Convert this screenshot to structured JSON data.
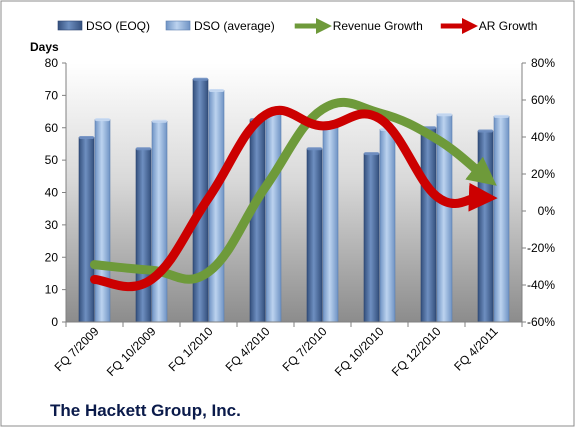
{
  "footer": "The Hackett Group, Inc.",
  "chart_data": {
    "type": "bar",
    "categories": [
      "FQ 7/2009",
      "FQ 10/2009",
      "FQ 1/2010",
      "FQ 4/2010",
      "FQ 7/2010",
      "FQ 10/2010",
      "FQ 12/2010",
      "FQ 4/2011"
    ],
    "y_axis_title": "Days",
    "ylim": [
      0,
      80
    ],
    "y_ticks": [
      0,
      10,
      20,
      30,
      40,
      50,
      60,
      70,
      80
    ],
    "y2lim": [
      -60,
      80
    ],
    "y2_ticks": [
      -60,
      -40,
      -20,
      0,
      20,
      40,
      60,
      80
    ],
    "y2_tick_labels": [
      "-60%",
      "-40%",
      "-20%",
      "0%",
      "20%",
      "40%",
      "60%",
      "80%"
    ],
    "bar_series": [
      {
        "name": "DSO (EOQ)",
        "color": "#4a6a9c",
        "values": [
          57,
          53.5,
          75,
          62.5,
          53.5,
          52,
          60,
          59
        ]
      },
      {
        "name": "DSO (average)",
        "color": "#8eb0dc",
        "values": [
          62.5,
          62,
          71.5,
          65.5,
          60.5,
          59.5,
          64,
          63.5
        ]
      }
    ],
    "line_series": [
      {
        "name": "Revenue Growth",
        "color": "#6e9a3a",
        "axis": "secondary",
        "values": [
          -29,
          -32,
          -33,
          13,
          55,
          53,
          39,
          15
        ]
      },
      {
        "name": "AR Growth",
        "color": "#cc0000",
        "axis": "secondary",
        "values": [
          -37,
          -37,
          7,
          52,
          46,
          50,
          8,
          7
        ]
      }
    ],
    "legend_position": "top",
    "grid": false,
    "background_colors": {
      "plot_top": "#ffffff",
      "plot_bottom": "#8c8c8c"
    }
  }
}
